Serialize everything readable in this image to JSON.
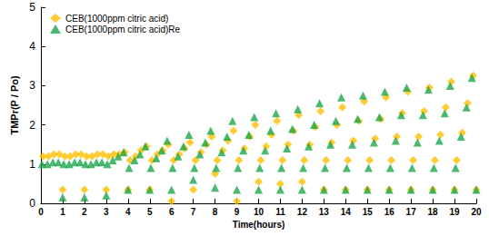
{
  "chart_data": {
    "type": "scatter",
    "x_label": "Time(hours)",
    "y_label": "TMPr(P / Po)",
    "xlim": [
      0,
      20
    ],
    "xticks": [
      0,
      1,
      2,
      3,
      4,
      5,
      6,
      7,
      8,
      9,
      10,
      11,
      12,
      13,
      14,
      15,
      16,
      17,
      18,
      19,
      20
    ],
    "ylim": [
      0,
      5
    ],
    "yticks": [
      0,
      1,
      2,
      3,
      4,
      5
    ],
    "grid": false,
    "legend": "upper left",
    "series": [
      {
        "name": "CEB(1000ppm citric acid)",
        "color": "#ffc000",
        "marker": "diamond",
        "x": [
          0.1,
          0.35,
          0.6,
          0.85,
          1,
          1.1,
          1.35,
          1.6,
          1.85,
          2,
          2.1,
          2.35,
          2.6,
          2.85,
          3,
          3.1,
          3.35,
          3.6,
          3.85,
          4,
          4.1,
          4.35,
          4.6,
          4.85,
          5,
          5.1,
          5.35,
          5.6,
          5.85,
          6,
          6.1,
          6.35,
          6.6,
          6.85,
          7,
          7.1,
          7.35,
          7.6,
          7.85,
          8,
          8.1,
          8.35,
          8.6,
          8.85,
          9,
          9.1,
          9.35,
          9.6,
          9.85,
          10,
          10.1,
          10.35,
          10.6,
          10.85,
          11,
          11.1,
          11.35,
          11.6,
          11.85,
          12,
          12.1,
          12.35,
          12.6,
          12.85,
          13,
          13.1,
          13.35,
          13.6,
          13.85,
          14,
          14.1,
          14.35,
          14.6,
          14.85,
          15,
          15.1,
          15.35,
          15.6,
          15.85,
          16,
          16.1,
          16.35,
          16.6,
          16.85,
          17,
          17.1,
          17.35,
          17.6,
          17.85,
          18,
          18.1,
          18.35,
          18.6,
          18.85,
          19,
          19.1,
          19.35,
          19.6,
          19.85,
          20
        ],
        "values": [
          1.2,
          1.2,
          1.25,
          1.25,
          0.35,
          1.2,
          1.2,
          1.25,
          1.25,
          0.35,
          1.2,
          1.2,
          1.25,
          1.25,
          0.35,
          1.2,
          1.25,
          1.25,
          1.3,
          0.35,
          1.1,
          1.2,
          1.35,
          1.45,
          0.35,
          1.1,
          1.25,
          1.35,
          1.5,
          0.05,
          1.1,
          1.25,
          1.4,
          1.55,
          0.35,
          1.1,
          1.3,
          1.5,
          1.7,
          0.75,
          1.1,
          1.35,
          1.6,
          1.85,
          0.05,
          1.1,
          1.4,
          1.7,
          2.0,
          0.55,
          1.1,
          1.45,
          1.75,
          2.1,
          0.5,
          1.1,
          1.5,
          1.85,
          2.25,
          0.55,
          1.1,
          1.5,
          1.95,
          2.35,
          0.35,
          1.1,
          1.55,
          2.0,
          2.45,
          0.35,
          1.1,
          1.6,
          2.1,
          2.6,
          0.35,
          1.1,
          1.65,
          2.15,
          2.7,
          0.35,
          1.1,
          1.7,
          2.3,
          2.85,
          0.35,
          1.1,
          1.7,
          2.35,
          2.95,
          0.35,
          1.1,
          1.75,
          2.45,
          3.1,
          0.35,
          1.1,
          1.8,
          2.55,
          3.25,
          0.35
        ]
      },
      {
        "name": "CEB(1000ppm citric acid)Re",
        "color": "#1aa84a",
        "marker": "triangle",
        "x": [
          0.05,
          0.3,
          0.55,
          0.8,
          1,
          1.05,
          1.3,
          1.55,
          1.8,
          2,
          2.05,
          2.3,
          2.55,
          2.8,
          3,
          3.05,
          3.3,
          3.55,
          3.8,
          4,
          4.05,
          4.3,
          4.55,
          4.8,
          5,
          5.05,
          5.3,
          5.55,
          5.8,
          6,
          6.05,
          6.3,
          6.55,
          6.8,
          7,
          7.05,
          7.3,
          7.55,
          7.8,
          8,
          8.05,
          8.3,
          8.55,
          8.8,
          9,
          9.05,
          9.3,
          9.55,
          9.8,
          10,
          10.05,
          10.3,
          10.55,
          10.8,
          11,
          11.05,
          11.3,
          11.55,
          11.8,
          12,
          12.05,
          12.3,
          12.55,
          12.8,
          13,
          13.05,
          13.3,
          13.55,
          13.8,
          14,
          14.05,
          14.3,
          14.55,
          14.8,
          15,
          15.05,
          15.3,
          15.55,
          15.8,
          16,
          16.05,
          16.3,
          16.55,
          16.8,
          17,
          17.05,
          17.3,
          17.55,
          17.8,
          18,
          18.05,
          18.3,
          18.55,
          18.8,
          19,
          19.05,
          19.3,
          19.55,
          19.8,
          20
        ],
        "values": [
          1.0,
          1.0,
          1.05,
          1.05,
          0.15,
          1.0,
          1.0,
          1.05,
          1.05,
          0.15,
          1.0,
          1.0,
          1.05,
          1.05,
          0.2,
          1.0,
          1.1,
          1.2,
          1.3,
          0.35,
          0.9,
          1.1,
          1.25,
          1.45,
          0.35,
          0.9,
          1.15,
          1.35,
          1.6,
          0.35,
          0.9,
          1.2,
          1.45,
          1.75,
          0.6,
          0.9,
          1.25,
          1.55,
          1.85,
          0.4,
          0.9,
          1.3,
          1.7,
          2.1,
          0.35,
          0.9,
          1.35,
          1.75,
          2.2,
          0.35,
          0.9,
          1.35,
          1.85,
          2.3,
          0.35,
          0.9,
          1.4,
          1.9,
          2.4,
          0.35,
          0.9,
          1.45,
          2.0,
          2.55,
          0.35,
          0.9,
          1.5,
          2.1,
          2.7,
          0.35,
          0.9,
          1.5,
          2.15,
          2.75,
          0.35,
          0.9,
          1.55,
          2.2,
          2.85,
          0.35,
          0.9,
          1.6,
          2.25,
          2.95,
          0.35,
          0.9,
          1.55,
          2.25,
          2.9,
          0.35,
          0.9,
          1.6,
          2.3,
          3.0,
          0.35,
          0.9,
          1.7,
          2.45,
          3.2,
          0.35
        ]
      }
    ]
  }
}
